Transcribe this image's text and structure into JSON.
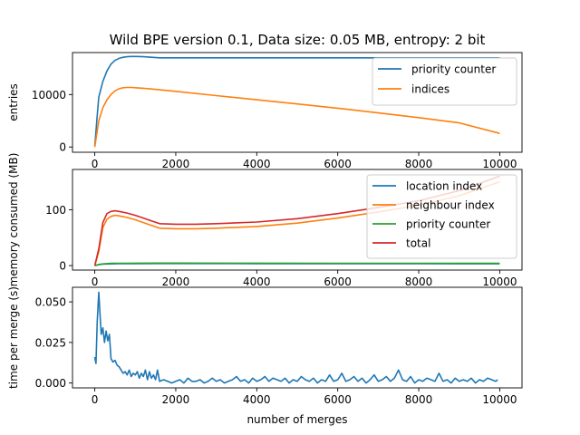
{
  "figure": {
    "title": "Wild BPE version 0.1, Data size: 0.05 MB, entropy: 2 bit"
  },
  "chart_data": [
    {
      "type": "line",
      "title": "Wild BPE version 0.1, Data size: 0.05 MB, entropy: 2 bit",
      "xlabel": "",
      "ylabel": "entries",
      "xlim": [
        -550,
        10550
      ],
      "ylim": [
        -1000,
        18000
      ],
      "xticks": [
        0,
        2000,
        4000,
        6000,
        8000,
        10000
      ],
      "xtick_labels": [
        "0",
        "2000",
        "4000",
        "6000",
        "8000",
        "10000"
      ],
      "yticks": [
        0,
        10000
      ],
      "ytick_labels": [
        "0",
        "10000"
      ],
      "grid": false,
      "legend_position": "top-right",
      "series": [
        {
          "name": "priority counter",
          "color": "#1f77b4",
          "x": [
            0,
            50,
            100,
            200,
            300,
            400,
            500,
            600,
            700,
            800,
            900,
            1000,
            1200,
            1400,
            1600,
            2000,
            4000,
            6000,
            8000,
            10000
          ],
          "y": [
            100,
            5000,
            9500,
            12500,
            14500,
            15800,
            16500,
            16900,
            17100,
            17200,
            17250,
            17250,
            17200,
            17100,
            17000,
            17000,
            17000,
            17000,
            17000,
            17000
          ]
        },
        {
          "name": "indices",
          "color": "#ff7f0e",
          "x": [
            0,
            50,
            100,
            200,
            300,
            400,
            500,
            600,
            700,
            800,
            900,
            1000,
            1200,
            1400,
            1600,
            2000,
            3000,
            4000,
            5000,
            6000,
            7000,
            8000,
            9000,
            10000
          ],
          "y": [
            0,
            2500,
            5000,
            7500,
            9000,
            10000,
            10700,
            11100,
            11300,
            11350,
            11350,
            11300,
            11200,
            11050,
            10900,
            10600,
            9800,
            9000,
            8200,
            7400,
            6500,
            5600,
            4600,
            2600
          ]
        }
      ]
    },
    {
      "type": "line",
      "title": "",
      "xlabel": "",
      "ylabel": "memory consumed (MB)",
      "xlim": [
        -550,
        10550
      ],
      "ylim": [
        -8,
        172
      ],
      "xticks": [
        0,
        2000,
        4000,
        6000,
        8000,
        10000
      ],
      "xtick_labels": [
        "0",
        "2000",
        "4000",
        "6000",
        "8000",
        "10000"
      ],
      "yticks": [
        0,
        100
      ],
      "ytick_labels": [
        "0",
        "100"
      ],
      "grid": false,
      "legend_position": "top-right",
      "series": [
        {
          "name": "location index",
          "color": "#1f77b4",
          "x": [
            0,
            100,
            200,
            400,
            600,
            1000,
            1600,
            2000,
            4000,
            6000,
            8000,
            10000
          ],
          "y": [
            0,
            1.5,
            2.5,
            3,
            3.3,
            3.5,
            3.6,
            3.6,
            3.5,
            3.4,
            3.3,
            3.2
          ]
        },
        {
          "name": "neighbour index",
          "color": "#ff7f0e",
          "x": [
            0,
            100,
            200,
            300,
            400,
            500,
            600,
            800,
            1000,
            1200,
            1400,
            1600,
            2000,
            2500,
            3000,
            4000,
            5000,
            6000,
            7000,
            8000,
            9000,
            10000
          ],
          "y": [
            0,
            25,
            68,
            83,
            88,
            90,
            89,
            86,
            82,
            77,
            72,
            67,
            66,
            66,
            67,
            70,
            76,
            85,
            96,
            108,
            125,
            150
          ]
        },
        {
          "name": "priority counter",
          "color": "#2ca02c",
          "x": [
            0,
            100,
            200,
            400,
            600,
            1000,
            1600,
            2000,
            4000,
            6000,
            8000,
            10000
          ],
          "y": [
            0,
            2,
            3,
            4,
            4.2,
            4.4,
            4.5,
            4.5,
            4.3,
            4.2,
            4.1,
            4.0
          ]
        },
        {
          "name": "total",
          "color": "#d62728",
          "x": [
            0,
            100,
            200,
            300,
            400,
            500,
            600,
            800,
            1000,
            1200,
            1400,
            1600,
            2000,
            2500,
            3000,
            4000,
            5000,
            6000,
            7000,
            8000,
            9000,
            10000
          ],
          "y": [
            0,
            30,
            77,
            93,
            97,
            98,
            97,
            94,
            90,
            85,
            80,
            75,
            74,
            74,
            75,
            78,
            84,
            93,
            104,
            116,
            134,
            160
          ]
        }
      ]
    },
    {
      "type": "line",
      "title": "",
      "xlabel": "number of merges",
      "ylabel": "time per merge (s)",
      "xlim": [
        -550,
        10550
      ],
      "ylim": [
        -0.003,
        0.059
      ],
      "xticks": [
        0,
        2000,
        4000,
        6000,
        8000,
        10000
      ],
      "xtick_labels": [
        "0",
        "2000",
        "4000",
        "6000",
        "8000",
        "10000"
      ],
      "yticks": [
        0,
        0.025,
        0.05
      ],
      "ytick_labels": [
        "0.000",
        "0.025",
        "0.050"
      ],
      "grid": false,
      "legend_position": "none",
      "series": [
        {
          "name": "",
          "color": "#1f77b4",
          "x": [
            0,
            30,
            60,
            100,
            130,
            160,
            200,
            240,
            280,
            320,
            360,
            400,
            450,
            500,
            550,
            600,
            650,
            700,
            750,
            800,
            850,
            900,
            950,
            1000,
            1050,
            1100,
            1150,
            1200,
            1250,
            1300,
            1350,
            1400,
            1450,
            1500,
            1550,
            1600,
            1700,
            1800,
            1900,
            2000,
            2100,
            2200,
            2300,
            2400,
            2500,
            2600,
            2700,
            2800,
            2900,
            3000,
            3100,
            3200,
            3300,
            3400,
            3500,
            3600,
            3700,
            3800,
            3900,
            4000,
            4100,
            4200,
            4300,
            4400,
            4500,
            4600,
            4700,
            4800,
            4900,
            5000,
            5100,
            5200,
            5300,
            5400,
            5500,
            5600,
            5700,
            5800,
            5900,
            6000,
            6100,
            6200,
            6300,
            6400,
            6500,
            6600,
            6700,
            6800,
            6900,
            7000,
            7100,
            7200,
            7300,
            7400,
            7500,
            7600,
            7700,
            7800,
            7900,
            8000,
            8100,
            8200,
            8300,
            8400,
            8500,
            8600,
            8700,
            8800,
            8900,
            9000,
            9100,
            9200,
            9300,
            9400,
            9500,
            9600,
            9700,
            9800,
            9900,
            9950
          ],
          "y": [
            0.016,
            0.012,
            0.038,
            0.056,
            0.042,
            0.03,
            0.034,
            0.025,
            0.032,
            0.026,
            0.03,
            0.015,
            0.013,
            0.014,
            0.011,
            0.01,
            0.008,
            0.006,
            0.007,
            0.005,
            0.008,
            0.004,
            0.006,
            0.005,
            0.007,
            0.003,
            0.006,
            0.004,
            0.008,
            0.002,
            0.007,
            0.003,
            0.005,
            0.002,
            0.008,
            0.001,
            0.002,
            0.001,
            0.0,
            0.001,
            0.002,
            0.0,
            0.003,
            0.001,
            0.001,
            0.002,
            0.0,
            0.001,
            0.003,
            0.001,
            0.002,
            0.0,
            0.001,
            0.002,
            0.004,
            0.001,
            0.002,
            0.0,
            0.003,
            0.001,
            0.002,
            0.004,
            0.001,
            0.003,
            0.002,
            0.001,
            0.003,
            0.0,
            0.002,
            0.001,
            0.004,
            0.002,
            0.001,
            0.003,
            0.0,
            0.002,
            0.001,
            0.005,
            0.001,
            0.002,
            0.006,
            0.001,
            0.002,
            0.004,
            0.001,
            0.003,
            0.0,
            0.002,
            0.005,
            0.001,
            0.002,
            0.004,
            0.001,
            0.003,
            0.008,
            0.002,
            0.001,
            0.004,
            0.0,
            0.002,
            0.001,
            0.003,
            0.002,
            0.001,
            0.006,
            0.001,
            0.002,
            0.0,
            0.003,
            0.001,
            0.002,
            0.001,
            0.003,
            0.0,
            0.002,
            0.001,
            0.003,
            0.002,
            0.001,
            0.002
          ]
        }
      ]
    }
  ]
}
